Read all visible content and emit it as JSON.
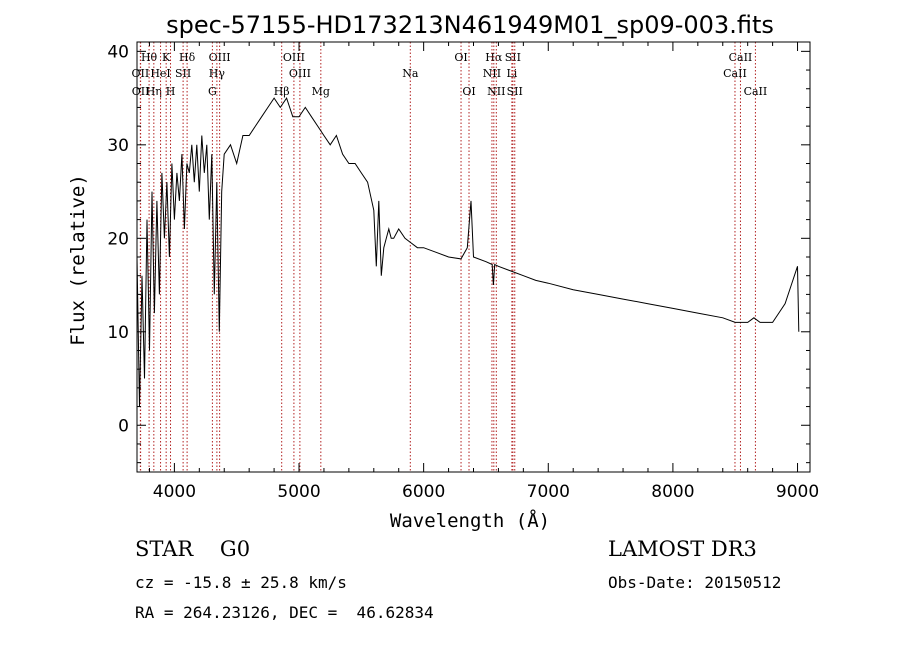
{
  "chart_data": {
    "type": "line",
    "title": "spec-57155-HD173213N461949M01_sp09-003.fits",
    "xlabel": "Wavelength (Å)",
    "ylabel": "Flux (relative)",
    "xlim": [
      3700,
      9100
    ],
    "ylim": [
      -5,
      41
    ],
    "xticks": [
      4000,
      5000,
      6000,
      7000,
      8000,
      9000
    ],
    "yticks": [
      0,
      10,
      20,
      30,
      40
    ],
    "series": [
      {
        "name": "flux",
        "x": [
          3700,
          3720,
          3740,
          3760,
          3780,
          3800,
          3820,
          3840,
          3860,
          3880,
          3900,
          3920,
          3940,
          3960,
          3980,
          4000,
          4020,
          4040,
          4060,
          4080,
          4100,
          4120,
          4140,
          4160,
          4180,
          4200,
          4220,
          4240,
          4260,
          4280,
          4300,
          4320,
          4340,
          4360,
          4380,
          4400,
          4450,
          4500,
          4550,
          4600,
          4650,
          4700,
          4750,
          4800,
          4850,
          4900,
          4950,
          5000,
          5050,
          5100,
          5150,
          5200,
          5250,
          5300,
          5350,
          5400,
          5450,
          5500,
          5550,
          5600,
          5620,
          5640,
          5660,
          5680,
          5700,
          5720,
          5740,
          5760,
          5800,
          5850,
          5900,
          5950,
          6000,
          6100,
          6200,
          6300,
          6350,
          6380,
          6400,
          6500,
          6550,
          6560,
          6570,
          6600,
          6700,
          6800,
          6900,
          7000,
          7200,
          7400,
          7600,
          7800,
          8000,
          8200,
          8400,
          8500,
          8550,
          8600,
          8650,
          8700,
          8800,
          8850,
          8900,
          8950,
          9000,
          9010
        ],
        "y": [
          18,
          2,
          16,
          5,
          22,
          8,
          25,
          12,
          24,
          14,
          27,
          20,
          26,
          18,
          28,
          22,
          27,
          24,
          29,
          21,
          28,
          27,
          30,
          26,
          30,
          25,
          31,
          27,
          30,
          22,
          29,
          14,
          26,
          10,
          25,
          29,
          30,
          28,
          31,
          31,
          32,
          33,
          34,
          35,
          34,
          35,
          33,
          33,
          34,
          33,
          32,
          31,
          30,
          31,
          29,
          28,
          28,
          27,
          26,
          23,
          17,
          24,
          16,
          19,
          20,
          21,
          20,
          20,
          21,
          20,
          19.5,
          19,
          19,
          18.5,
          18,
          17.8,
          19,
          24,
          18,
          17.5,
          17.2,
          15,
          17.2,
          17,
          16.5,
          16,
          15.5,
          15.2,
          14.5,
          14,
          13.5,
          13,
          12.5,
          12,
          11.5,
          11,
          11,
          11,
          11.5,
          11,
          11,
          12,
          13,
          15,
          17,
          10
        ],
        "color": "#000000"
      }
    ],
    "spectral_lines": [
      {
        "label": "Hθ",
        "x": 3797,
        "row": 1
      },
      {
        "label": "OII",
        "x": 3727,
        "row": 2
      },
      {
        "label": "OII",
        "x": 3729,
        "row": 3
      },
      {
        "label": "Hη",
        "x": 3835,
        "row": 3
      },
      {
        "label": "K",
        "x": 3934,
        "row": 1
      },
      {
        "label": "H",
        "x": 3969,
        "row": 3
      },
      {
        "label": "HeI",
        "x": 3889,
        "row": 2
      },
      {
        "label": "SII",
        "x": 4070,
        "row": 2
      },
      {
        "label": "Hδ",
        "x": 4102,
        "row": 1
      },
      {
        "label": "OIII",
        "x": 4363,
        "row": 1
      },
      {
        "label": "Hγ",
        "x": 4341,
        "row": 2
      },
      {
        "label": "G",
        "x": 4305,
        "row": 3
      },
      {
        "label": "Hβ",
        "x": 4861,
        "row": 3
      },
      {
        "label": "OIII",
        "x": 4959,
        "row": 1
      },
      {
        "label": "OIII",
        "x": 5007,
        "row": 2
      },
      {
        "label": "Mg",
        "x": 5175,
        "row": 3
      },
      {
        "label": "Na",
        "x": 5893,
        "row": 2
      },
      {
        "label": "OI",
        "x": 6300,
        "row": 1
      },
      {
        "label": "OI",
        "x": 6364,
        "row": 3
      },
      {
        "label": "Hα",
        "x": 6563,
        "row": 1
      },
      {
        "label": "NII",
        "x": 6548,
        "row": 2
      },
      {
        "label": "NII",
        "x": 6583,
        "row": 3
      },
      {
        "label": "SII",
        "x": 6716,
        "row": 1
      },
      {
        "label": "Li",
        "x": 6708,
        "row": 2
      },
      {
        "label": "SII",
        "x": 6731,
        "row": 3
      },
      {
        "label": "CaII",
        "x": 8542,
        "row": 1
      },
      {
        "label": "CaII",
        "x": 8498,
        "row": 2
      },
      {
        "label": "CaII",
        "x": 8662,
        "row": 3
      }
    ],
    "line_color": "#b22222"
  },
  "info": {
    "object_class": "STAR    G0",
    "survey": "LAMOST DR3",
    "redshift": "cz = -15.8 ± 25.8 km/s",
    "obs_date": "Obs-Date: 20150512",
    "coords": "RA = 264.23126, DEC =  46.62834"
  }
}
